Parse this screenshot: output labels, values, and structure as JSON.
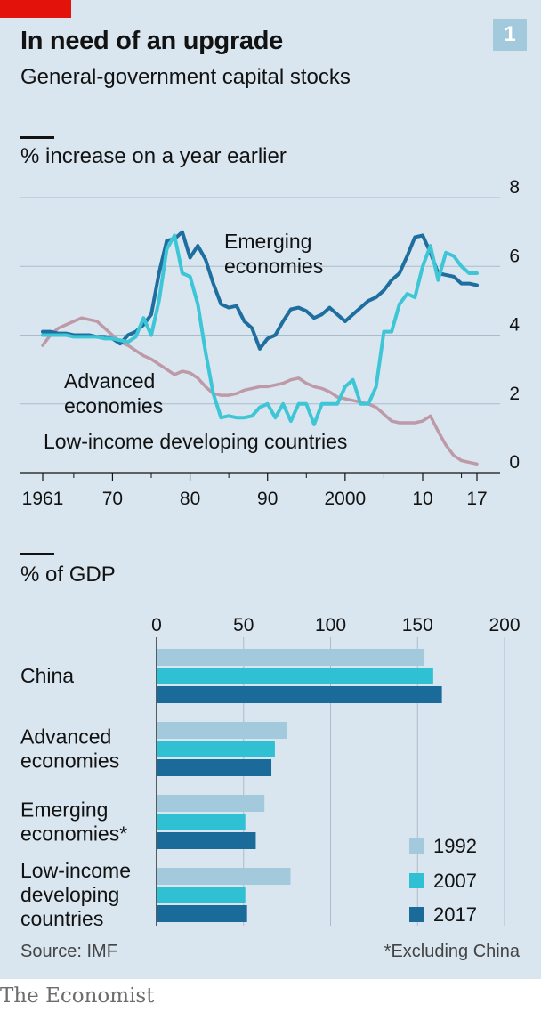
{
  "header": {
    "title": "In need of an upgrade",
    "subtitle": "General-government capital stocks",
    "chart_number": "1"
  },
  "footer": {
    "source": "Source: IMF",
    "footnote": "*Excluding China",
    "brand": "The Economist"
  },
  "colors": {
    "advanced": "#be9aa8",
    "emerging": "#1e6f9f",
    "lowincome": "#3ec6d6",
    "bar_1992": "#a3c9dc",
    "bar_2007": "#2fc1d3",
    "bar_2017": "#1a6b9a"
  },
  "chart_data": [
    {
      "type": "line",
      "section_label": "% increase on a year earlier",
      "ylim": [
        0,
        8
      ],
      "yticks": [
        "0",
        "2",
        "4",
        "6",
        "8"
      ],
      "xlim": [
        1961,
        2017
      ],
      "xticks": [
        {
          "year": 1961,
          "label": "1961"
        },
        {
          "year": 1970,
          "label": "70"
        },
        {
          "year": 1980,
          "label": "80"
        },
        {
          "year": 1990,
          "label": "90"
        },
        {
          "year": 2000,
          "label": "2000"
        },
        {
          "year": 2010,
          "label": "10"
        },
        {
          "year": 2017,
          "label": "17"
        }
      ],
      "annotations": {
        "emerging": "Emerging economies",
        "advanced": "Advanced economies",
        "lowincome": "Low-income developing countries"
      },
      "series": [
        {
          "key": "advanced",
          "name": "Advanced economies",
          "x": [
            1961,
            1962,
            1963,
            1964,
            1965,
            1966,
            1967,
            1968,
            1969,
            1970,
            1971,
            1972,
            1973,
            1974,
            1975,
            1976,
            1977,
            1978,
            1979,
            1980,
            1981,
            1982,
            1983,
            1984,
            1985,
            1986,
            1987,
            1988,
            1989,
            1990,
            1991,
            1992,
            1993,
            1994,
            1995,
            1996,
            1997,
            1998,
            1999,
            2000,
            2001,
            2002,
            2003,
            2004,
            2005,
            2006,
            2007,
            2008,
            2009,
            2010,
            2011,
            2012,
            2013,
            2014,
            2015,
            2016,
            2017
          ],
          "values": [
            3.7,
            4.0,
            4.2,
            4.3,
            4.4,
            4.5,
            4.45,
            4.4,
            4.2,
            4.0,
            3.8,
            3.7,
            3.55,
            3.4,
            3.3,
            3.15,
            3.0,
            2.85,
            2.95,
            2.9,
            2.75,
            2.5,
            2.3,
            2.25,
            2.25,
            2.3,
            2.4,
            2.45,
            2.5,
            2.5,
            2.55,
            2.6,
            2.7,
            2.75,
            2.6,
            2.5,
            2.45,
            2.35,
            2.2,
            2.15,
            2.1,
            2.05,
            2.0,
            1.9,
            1.7,
            1.5,
            1.45,
            1.45,
            1.45,
            1.5,
            1.65,
            1.2,
            0.8,
            0.5,
            0.35,
            0.3,
            0.25
          ]
        },
        {
          "key": "emerging",
          "name": "Emerging economies",
          "x": [
            1961,
            1962,
            1963,
            1964,
            1965,
            1966,
            1967,
            1968,
            1969,
            1970,
            1971,
            1972,
            1973,
            1974,
            1975,
            1976,
            1977,
            1978,
            1979,
            1980,
            1981,
            1982,
            1983,
            1984,
            1985,
            1986,
            1987,
            1988,
            1989,
            1990,
            1991,
            1992,
            1993,
            1994,
            1995,
            1996,
            1997,
            1998,
            1999,
            2000,
            2001,
            2002,
            2003,
            2004,
            2005,
            2006,
            2007,
            2008,
            2009,
            2010,
            2011,
            2012,
            2013,
            2014,
            2015,
            2016,
            2017
          ],
          "values": [
            4.1,
            4.1,
            4.05,
            4.05,
            4.0,
            4.0,
            4.0,
            3.95,
            3.95,
            3.9,
            3.75,
            4.0,
            4.1,
            4.3,
            4.6,
            5.8,
            6.75,
            6.8,
            7.0,
            6.25,
            6.6,
            6.2,
            5.5,
            4.9,
            4.8,
            4.85,
            4.4,
            4.2,
            3.6,
            3.9,
            4.0,
            4.4,
            4.75,
            4.8,
            4.7,
            4.5,
            4.6,
            4.8,
            4.6,
            4.4,
            4.6,
            4.8,
            5.0,
            5.1,
            5.3,
            5.6,
            5.8,
            6.3,
            6.85,
            6.9,
            6.4,
            5.8,
            5.75,
            5.7,
            5.5,
            5.5,
            5.45
          ]
        },
        {
          "key": "lowincome",
          "name": "Low-income developing countries",
          "x": [
            1961,
            1962,
            1963,
            1964,
            1965,
            1966,
            1967,
            1968,
            1969,
            1970,
            1971,
            1972,
            1973,
            1974,
            1975,
            1976,
            1977,
            1978,
            1979,
            1980,
            1981,
            1982,
            1983,
            1984,
            1985,
            1986,
            1987,
            1988,
            1989,
            1990,
            1991,
            1992,
            1993,
            1994,
            1995,
            1996,
            1997,
            1998,
            1999,
            2000,
            2001,
            2002,
            2003,
            2004,
            2005,
            2006,
            2007,
            2008,
            2009,
            2010,
            2011,
            2012,
            2013,
            2014,
            2015,
            2016,
            2017
          ],
          "values": [
            4.0,
            4.0,
            4.0,
            4.0,
            3.95,
            3.95,
            3.95,
            3.95,
            3.9,
            3.9,
            3.85,
            3.8,
            3.95,
            4.5,
            4.0,
            5.0,
            6.5,
            6.9,
            5.8,
            5.7,
            4.9,
            3.5,
            2.3,
            1.6,
            1.65,
            1.6,
            1.6,
            1.65,
            1.9,
            2.0,
            1.6,
            2.0,
            1.5,
            2.0,
            2.0,
            1.4,
            2.0,
            2.0,
            2.0,
            2.5,
            2.7,
            2.0,
            2.0,
            2.5,
            4.1,
            4.1,
            4.9,
            5.2,
            5.1,
            6.0,
            6.6,
            5.6,
            6.4,
            6.3,
            6.0,
            5.8,
            5.8
          ]
        }
      ]
    },
    {
      "type": "bar",
      "orientation": "horizontal",
      "section_label": "% of GDP",
      "xlim": [
        0,
        200
      ],
      "xticks": [
        "0",
        "50",
        "100",
        "150",
        "200"
      ],
      "categories": [
        {
          "label_lines": [
            "China"
          ]
        },
        {
          "label_lines": [
            "Advanced",
            "economies"
          ]
        },
        {
          "label_lines": [
            "Emerging",
            "economies*"
          ]
        },
        {
          "label_lines": [
            "Low-income",
            "developing",
            "countries"
          ]
        }
      ],
      "series": [
        {
          "key": "bar_1992",
          "name": "1992",
          "values": [
            154,
            75,
            62,
            77
          ]
        },
        {
          "key": "bar_2007",
          "name": "2007",
          "values": [
            159,
            68,
            51,
            51
          ]
        },
        {
          "key": "bar_2017",
          "name": "2017",
          "values": [
            164,
            66,
            57,
            52
          ]
        }
      ]
    }
  ]
}
